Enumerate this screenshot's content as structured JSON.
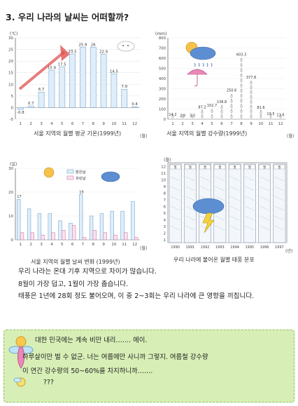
{
  "title": "3. 우리 나라의 날씨는 어떠할까?",
  "charts": {
    "temp": {
      "caption": "서울 지역의 월별 평균 기온(1999년)",
      "unit": "(℃)",
      "xunit": "(월)"
    },
    "precip": {
      "caption": "서울 지역의 월별 강수량(1999년)",
      "unit": "(mm)",
      "xunit": "(월)"
    },
    "days": {
      "caption": "서울 지역의 월별 날씨 변화 (1999년)",
      "unit": "(일)",
      "xunit": "(월)",
      "legend": [
        "맑은날",
        "흐린날"
      ]
    },
    "typhoon": {
      "caption": "우리 나라에 불어온 월별 태풍 분포",
      "unit": "(월)",
      "xunit": "(년)"
    }
  },
  "chart_data": [
    {
      "type": "bar",
      "categories": [
        "1",
        "2",
        "3",
        "4",
        "5",
        "6",
        "7",
        "8",
        "9",
        "10",
        "11",
        "12"
      ],
      "values": [
        -0.8,
        0.7,
        6.7,
        15.9,
        17.5,
        23.1,
        25.9,
        26.0,
        22.9,
        14.5,
        7.9,
        0.4
      ],
      "ylim": [
        -5,
        30
      ],
      "yticks": [
        -5,
        0,
        5,
        10,
        15,
        20,
        25,
        30
      ]
    },
    {
      "type": "bar",
      "categories": [
        "1",
        "2",
        "3",
        "4",
        "5",
        "6",
        "7",
        "8",
        "9",
        "10",
        "11",
        "12"
      ],
      "values": [
        14.2,
        2.9,
        3.3,
        87.2,
        102.7,
        138.8,
        250.6,
        603.3,
        377.8,
        81.6,
        19.5,
        11.6
      ],
      "ylim": [
        0,
        800
      ],
      "yticks": [
        0,
        100,
        200,
        300,
        400,
        500,
        600,
        700,
        800
      ]
    },
    {
      "type": "bar",
      "categories": [
        "1",
        "2",
        "3",
        "4",
        "5",
        "6",
        "7",
        "8",
        "9",
        "10",
        "11",
        "12"
      ],
      "series": [
        {
          "name": "맑은날",
          "values": [
            17,
            13,
            11,
            11,
            8,
            7,
            19,
            10,
            11,
            12,
            12,
            16
          ]
        },
        {
          "name": "흐린날",
          "values": [
            3,
            3,
            2,
            3,
            4,
            6,
            1,
            4,
            3,
            2,
            3,
            1
          ]
        }
      ],
      "ylim": [
        0,
        30
      ],
      "yticks": [
        0,
        10,
        20,
        30
      ]
    },
    {
      "type": "bar",
      "categories": [
        "1990",
        "1991",
        "1992",
        "1993",
        "1994",
        "1995",
        "1996",
        "1997"
      ],
      "ylim": [
        1,
        12
      ],
      "yticks": [
        1,
        2,
        3,
        4,
        5,
        6,
        7,
        8,
        9,
        10,
        11,
        12
      ],
      "months_label": "월"
    }
  ],
  "paragraph": [
    "우리 나라는 온대 기후 지역으로 차이가 많습니다.",
    "8월이 가장 덥고, 1월이 가장 춥습니다.",
    "태풍은 1년에 28회 정도 불어오며, 이 중 2~3회는 우리 나라에 큰 영향을 끼칩니다."
  ],
  "dialog": {
    "lines": [
      "대한 민국에는 계속 비만 내리……. 에이.",
      "하루살이만 벌 수 없군. 너는 여름에만 사니까 그렇지. 여름철 강수량",
      "이 연간 강수량의 50~60%를 차지하니까…….",
      "???"
    ]
  },
  "colors": {
    "bar_fill": "#dfeefa",
    "bar_stroke": "#7aa6cc",
    "accent_red": "#e05050",
    "pink": "#e889b8",
    "dialog_bg": "#d7efb6"
  }
}
